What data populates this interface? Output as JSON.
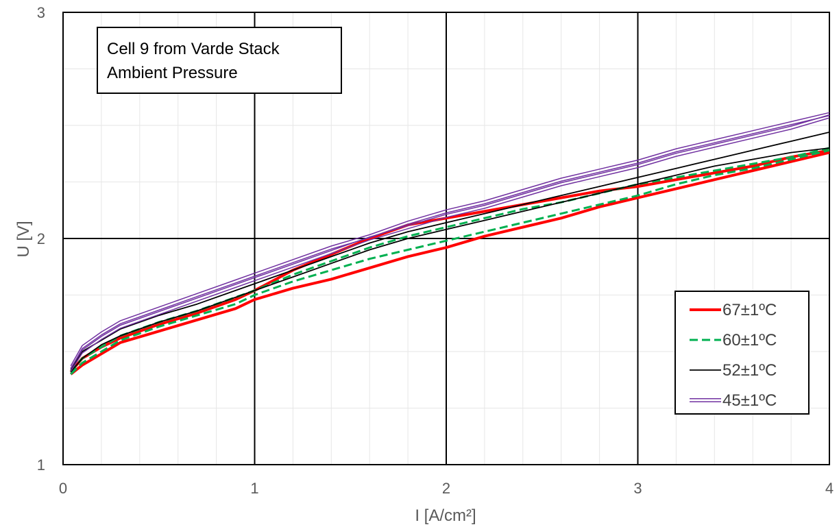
{
  "chart_data": {
    "type": "line",
    "title": "",
    "xlabel": "I [A/cm²]",
    "ylabel": "U [V]",
    "xlim": [
      0,
      4
    ],
    "ylim": [
      1,
      3
    ],
    "x_ticks": [
      "0",
      "1",
      "2",
      "3",
      "4"
    ],
    "y_ticks": [
      "1",
      "2",
      "3"
    ],
    "grid": {
      "major": true,
      "minor": true
    },
    "legend_position": "right",
    "annotation": {
      "line1": "Cell 9 from Varde Stack",
      "line2": "Ambient Pressure"
    },
    "series": [
      {
        "name": "67±1ºC",
        "color": "#FF0000",
        "style": "solid-thick",
        "upper": {
          "x": [
            0.04,
            0.1,
            0.2,
            0.3,
            0.5,
            0.7,
            0.9,
            1.0,
            1.2,
            1.4,
            1.6,
            1.8,
            2.0,
            2.2,
            2.4,
            2.6,
            2.8,
            3.0,
            3.2,
            3.4,
            3.6,
            3.8,
            4.0
          ],
          "y": [
            1.41,
            1.47,
            1.52,
            1.56,
            1.62,
            1.67,
            1.73,
            1.77,
            1.86,
            1.93,
            2.0,
            2.06,
            2.09,
            2.12,
            2.15,
            2.18,
            2.21,
            2.23,
            2.26,
            2.29,
            2.32,
            2.36,
            2.39
          ]
        },
        "lower": {
          "x": [
            0.04,
            0.1,
            0.2,
            0.3,
            0.5,
            0.7,
            0.9,
            1.0,
            1.2,
            1.4,
            1.6,
            1.8,
            2.0,
            2.2,
            2.4,
            2.6,
            2.8,
            3.0,
            3.2,
            3.4,
            3.6,
            3.8,
            4.0
          ],
          "y": [
            1.4,
            1.44,
            1.49,
            1.54,
            1.59,
            1.64,
            1.69,
            1.73,
            1.78,
            1.82,
            1.87,
            1.92,
            1.96,
            2.01,
            2.05,
            2.09,
            2.14,
            2.18,
            2.22,
            2.26,
            2.3,
            2.34,
            2.38
          ]
        }
      },
      {
        "name": "60±1ºC",
        "color": "#00B050",
        "style": "dashed",
        "upper": {
          "x": [
            0.04,
            0.1,
            0.2,
            0.3,
            0.5,
            0.7,
            0.9,
            1.0,
            1.2,
            1.4,
            1.6,
            1.8,
            2.0,
            2.2,
            2.4,
            2.6,
            2.8,
            3.0,
            3.2,
            3.4,
            3.6,
            3.8,
            4.0
          ],
          "y": [
            1.41,
            1.47,
            1.52,
            1.57,
            1.63,
            1.68,
            1.74,
            1.77,
            1.84,
            1.9,
            1.96,
            2.01,
            2.05,
            2.09,
            2.13,
            2.16,
            2.2,
            2.24,
            2.27,
            2.3,
            2.33,
            2.36,
            2.4
          ]
        },
        "lower": {
          "x": [
            0.04,
            0.1,
            0.2,
            0.3,
            0.5,
            0.7,
            0.9,
            1.0,
            1.2,
            1.4,
            1.6,
            1.8,
            2.0,
            2.2,
            2.4,
            2.6,
            2.8,
            3.0,
            3.2,
            3.4,
            3.6,
            3.8,
            4.0
          ],
          "y": [
            1.4,
            1.45,
            1.5,
            1.55,
            1.61,
            1.66,
            1.71,
            1.75,
            1.81,
            1.86,
            1.91,
            1.95,
            1.99,
            2.03,
            2.07,
            2.11,
            2.15,
            2.19,
            2.24,
            2.28,
            2.31,
            2.35,
            2.39
          ]
        }
      },
      {
        "name": "52±1ºC",
        "color": "#000000",
        "style": "solid-thin",
        "upper": {
          "x": [
            0.04,
            0.1,
            0.2,
            0.3,
            0.5,
            0.7,
            0.9,
            1.0,
            1.2,
            1.4,
            1.6,
            1.8,
            2.0,
            2.2,
            2.4,
            2.6,
            2.8,
            3.0,
            3.2,
            3.4,
            3.6,
            3.8,
            4.0
          ],
          "y": [
            1.42,
            1.5,
            1.55,
            1.6,
            1.66,
            1.71,
            1.77,
            1.8,
            1.86,
            1.92,
            1.98,
            2.03,
            2.07,
            2.11,
            2.15,
            2.19,
            2.23,
            2.27,
            2.31,
            2.35,
            2.39,
            2.43,
            2.47
          ]
        },
        "lower": {
          "x": [
            0.04,
            0.1,
            0.2,
            0.3,
            0.5,
            0.7,
            0.9,
            1.0,
            1.2,
            1.4,
            1.6,
            1.8,
            2.0,
            2.2,
            2.4,
            2.6,
            2.8,
            3.0,
            3.2,
            3.4,
            3.6,
            3.8,
            4.0
          ],
          "y": [
            1.41,
            1.47,
            1.53,
            1.57,
            1.63,
            1.68,
            1.74,
            1.77,
            1.83,
            1.89,
            1.95,
            2.0,
            2.04,
            2.08,
            2.12,
            2.16,
            2.2,
            2.24,
            2.28,
            2.32,
            2.35,
            2.38,
            2.4
          ]
        }
      },
      {
        "name": "45±1ºC",
        "color": "#7030A0",
        "style": "double",
        "upper": {
          "x": [
            0.04,
            0.1,
            0.2,
            0.3,
            0.5,
            0.7,
            0.9,
            1.0,
            1.2,
            1.4,
            1.6,
            1.8,
            2.0,
            2.2,
            2.4,
            2.6,
            2.8,
            3.0,
            3.2,
            3.4,
            3.6,
            3.8,
            4.0
          ],
          "y": [
            1.43,
            1.52,
            1.58,
            1.63,
            1.69,
            1.75,
            1.81,
            1.84,
            1.9,
            1.96,
            2.01,
            2.07,
            2.12,
            2.16,
            2.21,
            2.26,
            2.3,
            2.34,
            2.39,
            2.43,
            2.47,
            2.51,
            2.55
          ]
        },
        "lower": {
          "x": [
            0.04,
            0.1,
            0.2,
            0.3,
            0.5,
            0.7,
            0.9,
            1.0,
            1.2,
            1.4,
            1.6,
            1.8,
            2.0,
            2.2,
            2.4,
            2.6,
            2.8,
            3.0,
            3.2,
            3.4,
            3.6,
            3.8,
            4.0
          ],
          "y": [
            1.42,
            1.5,
            1.56,
            1.61,
            1.67,
            1.73,
            1.79,
            1.82,
            1.88,
            1.94,
            2.0,
            2.05,
            2.1,
            2.14,
            2.19,
            2.24,
            2.28,
            2.32,
            2.37,
            2.41,
            2.45,
            2.49,
            2.54
          ]
        }
      }
    ]
  }
}
